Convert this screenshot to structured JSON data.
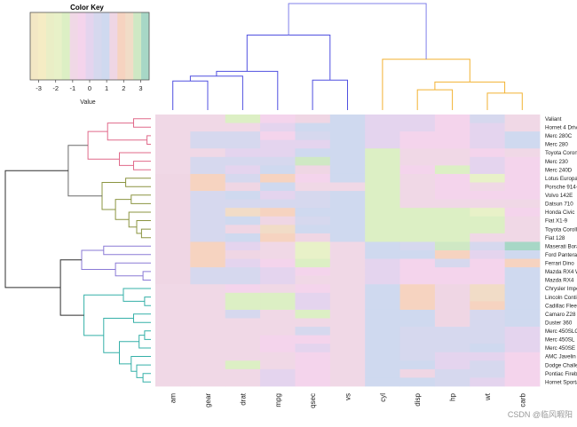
{
  "chart_data": {
    "type": "heatmap",
    "title": "",
    "xlabel": "",
    "ylabel": "",
    "columns": [
      "am",
      "gear",
      "drat",
      "mpg",
      "qsec",
      "vs",
      "cyl",
      "disp",
      "hp",
      "wt",
      "carb"
    ],
    "rows": [
      "Valiant",
      "Hornet 4 Drive",
      "Merc 280C",
      "Merc 280",
      "Toyota Corona",
      "Merc 230",
      "Merc 240D",
      "Lotus Europa",
      "Porsche 914-2",
      "Volvo 142E",
      "Datsun 710",
      "Honda Civic",
      "Fiat X1-9",
      "Toyota Corolla",
      "Fiat 128",
      "Maserati Bora",
      "Ford Pantera L",
      "Ferrari Dino",
      "Mazda RX4 Wag",
      "Mazda RX4",
      "Chrysler Imperial",
      "Lincoln Continental",
      "Cadillac Fleetwood",
      "Camaro Z28",
      "Duster 360",
      "Merc 450SLC",
      "Merc 450SL",
      "Merc 450SE",
      "AMC Javelin",
      "Dodge Challenger",
      "Pontiac Firebird",
      "Hornet Sportabout"
    ],
    "row_labels_visible": [
      "Valiant",
      "Hornet 4 Drive",
      "Merc 280C",
      "Merc 280",
      "Toyota Coron",
      "Merc 230",
      "Merc 240D",
      "Lotus Europa",
      "Porsche 914-",
      "Volvo 142E",
      "Datsun 710",
      "Honda Civic",
      "Fiat X1-9",
      "Toyota Corolli",
      "Fiat 128",
      "Maserati Bora",
      "Ford Pantera",
      "Ferrari Dino",
      "Mazda RX4 W",
      "Mazda RX4",
      "Chrysler Impe",
      "Lincoln Contir",
      "Cadillac Fleet",
      "Camaro Z28",
      "Duster 360",
      "Merc 450SLC",
      "Merc 450SL",
      "Merc 450SE",
      "AMC Javelin",
      "Dodge Challe",
      "Pontiac Firebi",
      "Hornet Sporta"
    ],
    "values": [
      [
        -0.81,
        -0.93,
        -1.56,
        -0.33,
        1.33,
        1.12,
        -0.11,
        0.22,
        -0.61,
        0.25,
        -1.12
      ],
      [
        -0.81,
        -0.93,
        -0.97,
        0.22,
        0.89,
        1.12,
        -0.11,
        0.22,
        -0.54,
        0.01,
        -1.12
      ],
      [
        -0.81,
        0.42,
        0.61,
        -0.58,
        0.59,
        1.12,
        -0.11,
        -0.51,
        -0.34,
        0.23,
        0.73
      ],
      [
        -0.81,
        0.42,
        0.61,
        -0.15,
        0.23,
        1.12,
        -0.11,
        -0.51,
        -0.34,
        0.23,
        0.73
      ],
      [
        -0.81,
        -0.93,
        0.19,
        0.23,
        1.15,
        1.12,
        -1.22,
        -0.89,
        -0.73,
        -0.45,
        -1.12
      ],
      [
        -0.81,
        0.42,
        0.61,
        0.45,
        2.83,
        1.12,
        -1.22,
        -0.72,
        -0.75,
        -0.07,
        -0.5
      ],
      [
        -0.81,
        0.42,
        0.18,
        0.72,
        1.2,
        1.12,
        -1.22,
        -0.68,
        -1.2,
        -0.0,
        -0.5
      ],
      [
        1.19,
        1.78,
        0.32,
        1.71,
        -0.53,
        1.12,
        -1.22,
        -1.09,
        -0.49,
        -1.74,
        -0.5
      ],
      [
        1.19,
        1.78,
        1.56,
        0.98,
        -1.05,
        -0.87,
        -1.22,
        -0.89,
        -0.64,
        -1.03,
        -0.5
      ],
      [
        1.19,
        0.42,
        0.96,
        0.22,
        0.43,
        1.12,
        -1.22,
        -0.89,
        -0.54,
        -0.45,
        -0.5
      ],
      [
        1.19,
        0.42,
        0.47,
        0.45,
        0.43,
        1.12,
        -1.22,
        -0.99,
        -0.78,
        -0.92,
        -1.12
      ],
      [
        1.19,
        0.42,
        2.49,
        2.04,
        0.9,
        1.12,
        -1.22,
        -1.25,
        -1.38,
        -1.64,
        -0.5
      ],
      [
        1.19,
        0.42,
        0.9,
        1.2,
        0.59,
        1.12,
        -1.22,
        -1.22,
        -1.19,
        -1.31,
        -1.12
      ],
      [
        1.19,
        0.42,
        1.17,
        2.29,
        1.15,
        1.12,
        -1.22,
        -1.29,
        -1.19,
        -1.41,
        -1.12
      ],
      [
        1.19,
        0.42,
        0.9,
        2.04,
        1.2,
        1.12,
        -1.22,
        -1.23,
        -1.19,
        -1.04,
        -1.12
      ],
      [
        1.19,
        1.78,
        -0.11,
        -0.84,
        -1.82,
        -0.87,
        1.01,
        0.57,
        2.75,
        0.36,
        3.21
      ],
      [
        1.19,
        1.78,
        1.17,
        -0.71,
        -1.87,
        -0.87,
        1.01,
        0.97,
        1.71,
        -0.05,
        0.73
      ],
      [
        1.19,
        1.78,
        0.05,
        -0.31,
        -1.31,
        -0.87,
        -0.11,
        -0.69,
        0.41,
        -0.45,
        1.97
      ],
      [
        1.19,
        0.42,
        0.57,
        0.15,
        -0.46,
        -0.87,
        -0.11,
        -0.57,
        -0.54,
        -0.35,
        0.73
      ],
      [
        1.19,
        0.42,
        0.57,
        0.15,
        -0.78,
        -0.87,
        -0.11,
        -0.57,
        -0.54,
        -0.61,
        0.73
      ],
      [
        -0.81,
        -0.93,
        -0.69,
        -0.89,
        -0.24,
        -0.87,
        1.01,
        1.68,
        1.21,
        2.17,
        0.73
      ],
      [
        -0.81,
        -0.93,
        -1.25,
        -1.61,
        0.08,
        -0.87,
        1.01,
        1.85,
        1.35,
        2.26,
        0.73
      ],
      [
        -0.81,
        -0.93,
        -1.25,
        -1.61,
        0.07,
        -0.87,
        1.01,
        1.95,
        1.28,
        2.08,
        0.73
      ],
      [
        -0.81,
        -0.93,
        0.25,
        -1.13,
        -1.37,
        -0.87,
        1.01,
        0.97,
        1.43,
        0.64,
        0.73
      ],
      [
        -0.81,
        -0.93,
        -0.72,
        -0.96,
        -1.12,
        -0.87,
        1.01,
        1.04,
        1.43,
        0.36,
        0.73
      ],
      [
        -0.81,
        -0.93,
        -0.98,
        -0.81,
        0.25,
        -0.87,
        1.01,
        0.36,
        0.49,
        0.52,
        0.12
      ],
      [
        -0.81,
        -0.93,
        -0.98,
        -0.61,
        -0.25,
        -0.87,
        1.01,
        0.36,
        0.49,
        0.41,
        0.12
      ],
      [
        -0.81,
        -0.93,
        -0.98,
        -0.46,
        -0.08,
        -0.87,
        1.01,
        0.36,
        0.49,
        0.87,
        0.12
      ],
      [
        -0.81,
        -0.93,
        -0.84,
        -0.81,
        -0.31,
        -0.87,
        1.01,
        0.59,
        0.05,
        0.22,
        -0.5
      ],
      [
        -0.81,
        -0.93,
        -1.56,
        -0.76,
        -0.54,
        -0.87,
        1.01,
        0.7,
        0.05,
        0.31,
        -0.5
      ],
      [
        -0.81,
        -0.93,
        -0.97,
        -0.15,
        -0.37,
        -0.87,
        1.01,
        1.37,
        0.41,
        0.64,
        -0.5
      ],
      [
        -0.81,
        -0.93,
        -0.84,
        -0.23,
        -0.46,
        -0.87,
        1.01,
        1.04,
        0.41,
        0.23,
        -0.5
      ]
    ],
    "color_key": {
      "title": "Color Key",
      "label": "Value",
      "range": [
        -3.5,
        3.5
      ],
      "ticks": [
        "-3",
        "-2",
        "-1",
        "0",
        "1",
        "2",
        "3"
      ],
      "palette": [
        "#f3e7c4",
        "#f5ecc4",
        "#eaeec6",
        "#e8f1c8",
        "#dcefc4",
        "#f0d8e6",
        "#f4d4ec",
        "#e4d4ee",
        "#d6d8ee",
        "#cfd9ef",
        "#efd6e4",
        "#f6d3c0",
        "#f1dcc7",
        "#cfe8c4",
        "#a7d7c6"
      ]
    },
    "col_dendrogram": {
      "merges": [
        {
          "l": "am",
          "r": "gear",
          "h": 0.6,
          "color": "#5050e0"
        },
        {
          "l": "m0",
          "r": "drat",
          "h": 0.7,
          "color": "#5050e0"
        },
        {
          "l": "m1",
          "r": "mpg",
          "h": 0.8,
          "color": "#5050e0"
        },
        {
          "l": "qsec",
          "r": "vs",
          "h": 0.62,
          "color": "#5050e0"
        },
        {
          "l": "m2",
          "r": "m3",
          "h": 1.55,
          "color": "#5050e0"
        },
        {
          "l": "disp",
          "r": "hp",
          "h": 0.42,
          "color": "#f2b233"
        },
        {
          "l": "wt",
          "r": "carb",
          "h": 0.35,
          "color": "#f2b233"
        },
        {
          "l": "m5",
          "r": "m6",
          "h": 0.58,
          "color": "#f2b233"
        },
        {
          "l": "cyl",
          "r": "m7",
          "h": 1.05,
          "color": "#f2b233"
        },
        {
          "l": "m4",
          "r": "m8",
          "h": 2.2,
          "color": "#8080e8"
        }
      ]
    },
    "row_dendrogram": {
      "merges": [
        {
          "l": "Merc 280C",
          "r": "Merc 280",
          "h": 0.05,
          "color": "#e06a8a"
        },
        {
          "l": "Valiant",
          "r": "Hornet 4 Drive",
          "h": 0.22,
          "color": "#e06a8a"
        },
        {
          "l": "Merc 230",
          "r": "Merc 240D",
          "h": 0.22,
          "color": "#e06a8a"
        },
        {
          "l": "Toyota Corona",
          "r": "r2",
          "h": 0.4,
          "color": "#e06a8a"
        },
        {
          "l": "r0",
          "r": "r1",
          "h": 0.55,
          "color": "#e06a8a"
        },
        {
          "l": "r4",
          "r": "r3",
          "h": 0.8,
          "color": "#e06a8a"
        },
        {
          "l": "Lotus Europa",
          "r": "Porsche 914-2",
          "h": 0.32,
          "color": "#8b9440"
        },
        {
          "l": "Volvo 142E",
          "r": "Datsun 710",
          "h": 0.25,
          "color": "#8b9440"
        },
        {
          "l": "Toyota Corolla",
          "r": "Fiat 128",
          "h": 0.12,
          "color": "#8b9440"
        },
        {
          "l": "Fiat X1-9",
          "r": "r8",
          "h": 0.18,
          "color": "#8b9440"
        },
        {
          "l": "Honda Civic",
          "r": "r9",
          "h": 0.28,
          "color": "#8b9440"
        },
        {
          "l": "r7",
          "r": "r10",
          "h": 0.45,
          "color": "#8b9440"
        },
        {
          "l": "r6",
          "r": "r11",
          "h": 0.62,
          "color": "#8b9440"
        },
        {
          "l": "r5",
          "r": "r12",
          "h": 1.05,
          "color": "#6a6a6a"
        },
        {
          "l": "Mazda RX4 Wag",
          "r": "Mazda RX4",
          "h": 0.1,
          "color": "#8a7ad6"
        },
        {
          "l": "Ferrari Dino",
          "r": "r14",
          "h": 0.45,
          "color": "#8a7ad6"
        },
        {
          "l": "Maserati Bora",
          "r": "Ford Pantera L",
          "h": 0.6,
          "color": "#8a7ad6"
        },
        {
          "l": "r16",
          "r": "r15",
          "h": 0.88,
          "color": "#8a7ad6"
        },
        {
          "l": "Lincoln Continental",
          "r": "Cadillac Fleetwood",
          "h": 0.08,
          "color": "#35b0a8"
        },
        {
          "l": "Chrysler Imperial",
          "r": "r18",
          "h": 0.35,
          "color": "#35b0a8"
        },
        {
          "l": "Camaro Z28",
          "r": "Duster 360",
          "h": 0.22,
          "color": "#35b0a8"
        },
        {
          "l": "Merc 450SLC",
          "r": "Merc 450SL",
          "h": 0.08,
          "color": "#35b0a8"
        },
        {
          "l": "r21",
          "r": "Merc 450SE",
          "h": 0.15,
          "color": "#35b0a8"
        },
        {
          "l": "Pontiac Firebird",
          "r": "Hornet Sportabout",
          "h": 0.1,
          "color": "#35b0a8"
        },
        {
          "l": "Dodge Challenger",
          "r": "r23",
          "h": 0.18,
          "color": "#35b0a8"
        },
        {
          "l": "AMC Javelin",
          "r": "r24",
          "h": 0.25,
          "color": "#35b0a8"
        },
        {
          "l": "r22",
          "r": "r25",
          "h": 0.4,
          "color": "#35b0a8"
        },
        {
          "l": "r20",
          "r": "r26",
          "h": 0.6,
          "color": "#35b0a8"
        },
        {
          "l": "r19",
          "r": "r27",
          "h": 0.85,
          "color": "#35b0a8"
        },
        {
          "l": "r17",
          "r": "r28",
          "h": 1.15,
          "color": "#2f2f2f"
        },
        {
          "l": "r13",
          "r": "r29",
          "h": 1.85,
          "color": "#2f2f2f"
        }
      ]
    }
  },
  "watermark": "CSDN @临风暇阳"
}
